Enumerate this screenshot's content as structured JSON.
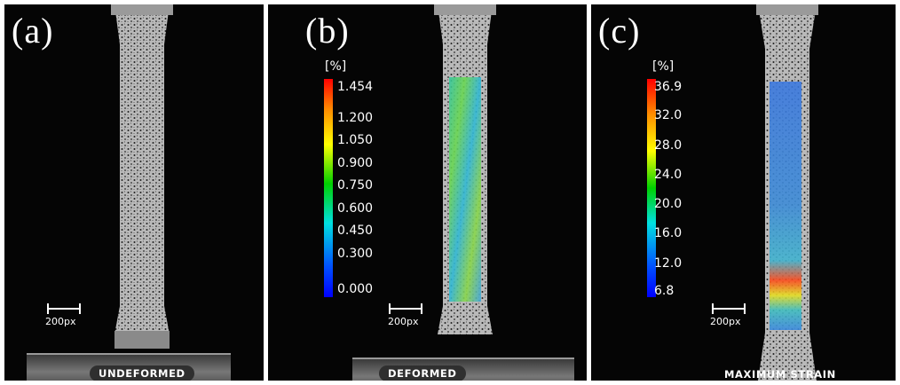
{
  "panels": [
    {
      "id": "a",
      "label": "(a)",
      "scale_bar": "200px",
      "status": "UNDEFORMED"
    },
    {
      "id": "b",
      "label": "(b)",
      "scale_bar": "200px",
      "status": "DEFORMED",
      "colorbar": {
        "unit": "[%]",
        "ticks": [
          "1.454",
          "1.200",
          "1.050",
          "0.900",
          "0.750",
          "0.600",
          "0.450",
          "0.300",
          "0.000"
        ]
      }
    },
    {
      "id": "c",
      "label": "(c)",
      "scale_bar": "200px",
      "status": "MAXIMUM STRAIN",
      "colorbar": {
        "unit": "[%]",
        "ticks": [
          "36.9",
          "32.0",
          "28.0",
          "24.0",
          "20.0",
          "16.0",
          "12.0",
          "6.8"
        ]
      }
    }
  ],
  "colors": {
    "background": "#050505",
    "colormap": [
      "#ff0000",
      "#ff8c00",
      "#ffff00",
      "#00d000",
      "#00e0e0",
      "#0050ff",
      "#0000ff"
    ]
  }
}
